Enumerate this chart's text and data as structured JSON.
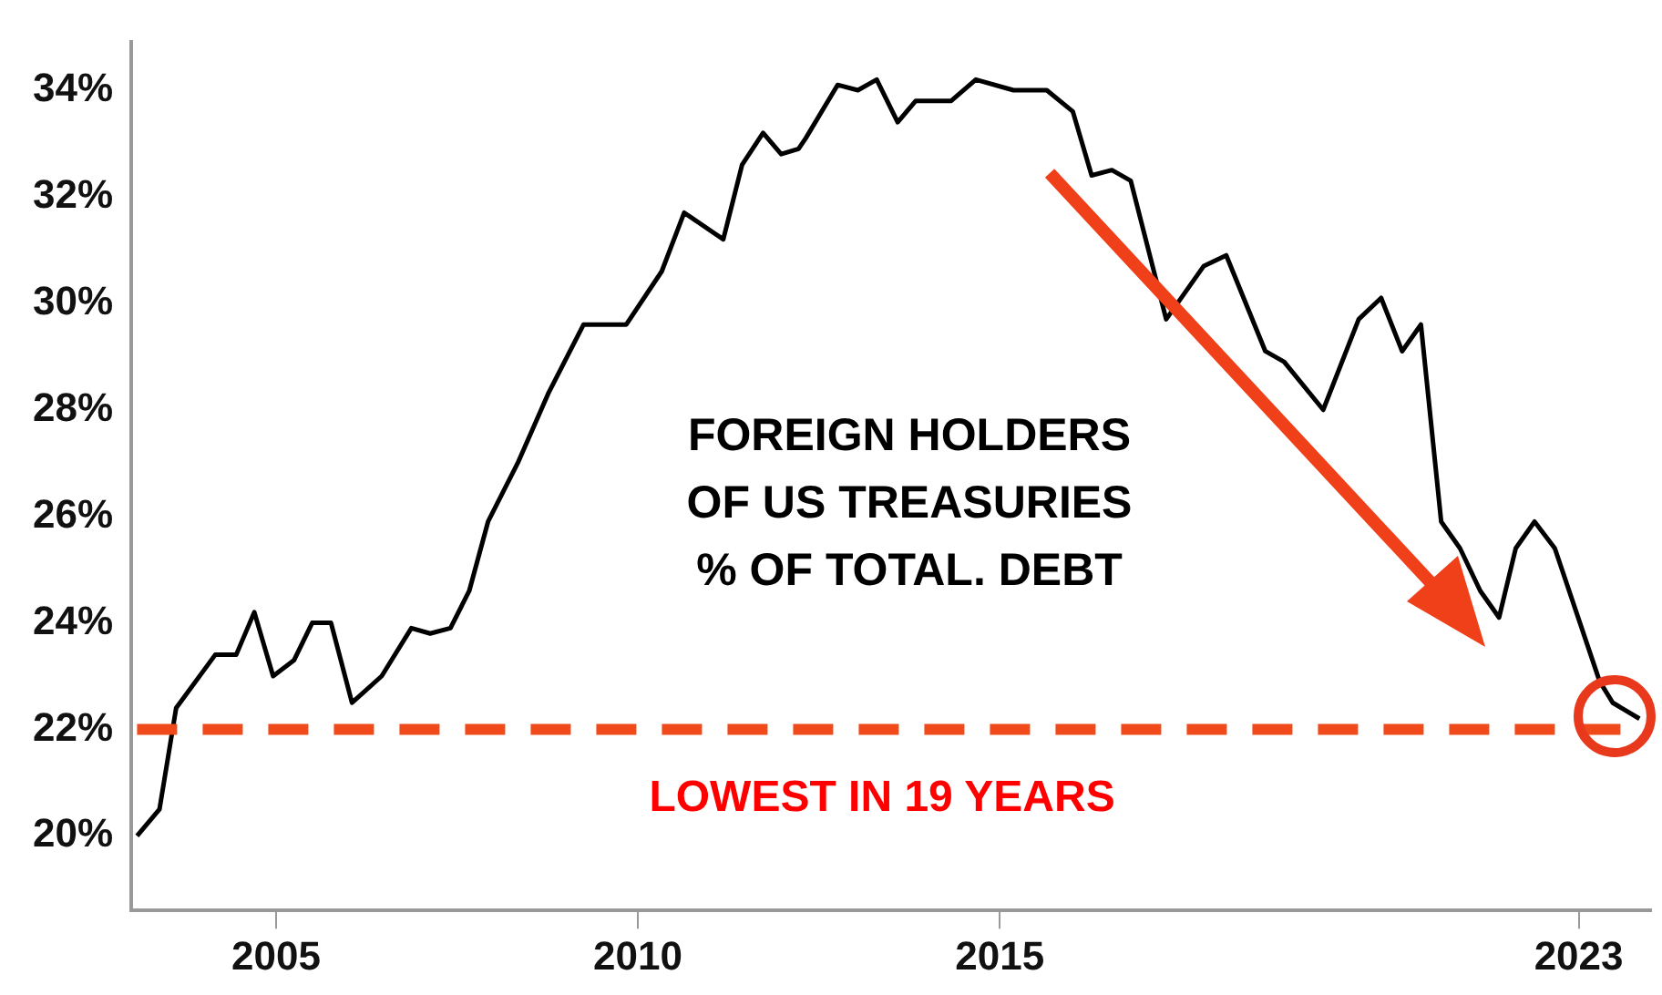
{
  "chart_data": {
    "type": "line",
    "title": "FOREIGN HOLDERS\nOF US TREASURIES\n% OF TOTAL. DEBT",
    "x": [
      2003.08,
      2003.39,
      2003.62,
      2004.16,
      2004.45,
      2004.7,
      2004.96,
      2005.25,
      2005.5,
      2005.76,
      2006.05,
      2006.46,
      2006.87,
      2007.13,
      2007.41,
      2007.67,
      2007.93,
      2008.34,
      2008.76,
      2009.25,
      2009.51,
      2009.84,
      2010.33,
      2010.64,
      2011.18,
      2011.44,
      2011.73,
      2011.98,
      2012.22,
      2012.32,
      2012.76,
      2013.04,
      2013.3,
      2013.59,
      2013.84,
      2014.33,
      2014.67,
      2015.19,
      2015.65,
      2016.01,
      2016.27,
      2016.55,
      2016.81,
      2017.3,
      2017.82,
      2018.13,
      2018.67,
      2018.93,
      2019.47,
      2019.96,
      2020.27,
      2020.56,
      2020.82,
      2021.1,
      2021.36,
      2021.64,
      2021.9,
      2022.13,
      2022.39,
      2022.67,
      2023.29,
      2023.47,
      2023.84
    ],
    "series": [
      {
        "color": "#000000",
        "values": [
          20.0,
          20.5,
          22.4,
          23.4,
          23.4,
          24.2,
          23.0,
          23.3,
          24.0,
          24.0,
          22.5,
          23.0,
          23.9,
          23.8,
          23.9,
          24.6,
          25.9,
          27.0,
          28.3,
          29.6,
          29.6,
          29.6,
          30.6,
          31.7,
          31.2,
          32.6,
          33.2,
          32.8,
          32.9,
          33.1,
          34.1,
          34.0,
          34.2,
          33.4,
          33.8,
          33.8,
          34.2,
          34.0,
          34.0,
          33.6,
          32.4,
          32.5,
          32.3,
          29.7,
          30.7,
          30.9,
          29.1,
          28.9,
          28.0,
          29.7,
          30.1,
          29.1,
          29.6,
          25.9,
          25.4,
          24.6,
          24.1,
          25.4,
          25.9,
          25.4,
          22.9,
          22.5,
          22.2
        ]
      }
    ],
    "xlim": [
      2003,
      2024
    ],
    "xticks": [
      2005,
      2010,
      2015,
      2023
    ],
    "ylim": [
      18.6,
      34.9
    ],
    "yticks": [
      {
        "value": 20,
        "label": "20%"
      },
      {
        "value": 22,
        "label": "22%"
      },
      {
        "value": 24,
        "label": "24%"
      },
      {
        "value": 26,
        "label": "26%"
      },
      {
        "value": 28,
        "label": "28%"
      },
      {
        "value": 30,
        "label": "30%"
      },
      {
        "value": 32,
        "label": "32%"
      },
      {
        "value": 34,
        "label": "34%"
      }
    ],
    "ref_lines": [
      {
        "axis": "y",
        "value": 22,
        "label": "LOWEST IN 19 YEARS",
        "color": "#f04a1a",
        "line_style": "dashed"
      }
    ],
    "grid": false,
    "legend": false,
    "marker": "none",
    "line_style": "solid"
  }
}
